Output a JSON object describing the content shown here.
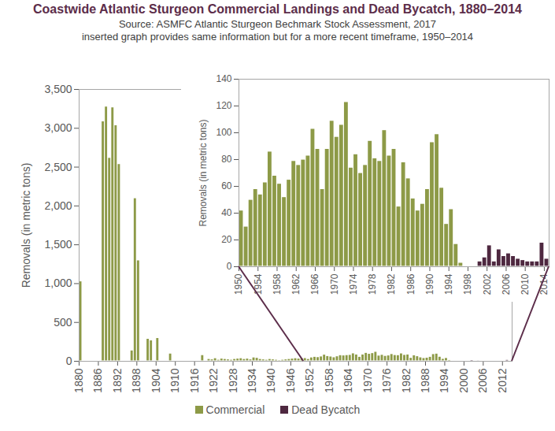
{
  "chart_data": [
    {
      "type": "bar",
      "title": "Coastwide Atlantic Sturgeon Commercial Landings and Dead Bycatch, 1880–2014",
      "subtitle": [
        "Source: ASMFC Atlantic Sturgeon Bechmark Stock Assessment, 2017",
        "inserted graph provides same information but for a more recent timeframe, 1950–2014"
      ],
      "ylabel": "Removals (in metric tons)",
      "x": [
        1880,
        1881,
        1882,
        1883,
        1884,
        1885,
        1886,
        1887,
        1888,
        1889,
        1890,
        1891,
        1892,
        1893,
        1894,
        1895,
        1896,
        1897,
        1898,
        1899,
        1900,
        1901,
        1902,
        1903,
        1904,
        1905,
        1906,
        1907,
        1908,
        1909,
        1910,
        1911,
        1912,
        1913,
        1914,
        1915,
        1916,
        1917,
        1918,
        1919,
        1920,
        1921,
        1922,
        1923,
        1924,
        1925,
        1926,
        1927,
        1928,
        1929,
        1930,
        1931,
        1932,
        1933,
        1934,
        1935,
        1936,
        1937,
        1938,
        1939,
        1940,
        1941,
        1942,
        1943,
        1944,
        1945,
        1946,
        1947,
        1948,
        1949,
        1950,
        1951,
        1952,
        1953,
        1954,
        1955,
        1956,
        1957,
        1958,
        1959,
        1960,
        1961,
        1962,
        1963,
        1964,
        1965,
        1966,
        1967,
        1968,
        1969,
        1970,
        1971,
        1972,
        1973,
        1974,
        1975,
        1976,
        1977,
        1978,
        1979,
        1980,
        1981,
        1982,
        1983,
        1984,
        1985,
        1986,
        1987,
        1988,
        1989,
        1990,
        1991,
        1992,
        1993,
        1994,
        1995,
        1996,
        1997,
        1998,
        1999,
        2000,
        2001,
        2002,
        2003,
        2004,
        2005,
        2006,
        2007,
        2008,
        2009,
        2010,
        2011,
        2012,
        2013,
        2014
      ],
      "series": [
        {
          "name": "Commercial",
          "color": "#8d9a47",
          "values": [
            1030,
            null,
            null,
            null,
            null,
            null,
            null,
            3090,
            3280,
            2620,
            3270,
            3040,
            2540,
            null,
            null,
            null,
            140,
            2100,
            1300,
            null,
            null,
            290,
            270,
            null,
            300,
            null,
            null,
            null,
            100,
            null,
            null,
            null,
            null,
            null,
            null,
            null,
            null,
            null,
            80,
            null,
            30,
            25,
            40,
            20,
            35,
            30,
            25,
            20,
            30,
            35,
            40,
            30,
            35,
            25,
            50,
            45,
            30,
            25,
            20,
            30,
            25,
            20,
            15,
            20,
            25,
            30,
            35,
            40,
            35,
            40,
            42,
            30,
            50,
            58,
            54,
            63,
            86,
            68,
            62,
            52,
            65,
            79,
            76,
            80,
            83,
            103,
            88,
            58,
            88,
            109,
            97,
            106,
            123,
            74,
            84,
            70,
            76,
            94,
            81,
            79,
            102,
            83,
            88,
            45,
            78,
            66,
            51,
            42,
            47,
            58,
            93,
            99,
            59,
            32,
            43,
            17,
            3,
            null,
            null,
            null,
            null,
            null,
            null,
            null,
            null,
            null,
            null,
            null,
            null,
            null,
            null,
            null,
            null,
            null,
            null
          ]
        },
        {
          "name": "Dead Bycatch",
          "color": "#4e2840",
          "values": [
            null,
            null,
            null,
            null,
            null,
            null,
            null,
            null,
            null,
            null,
            null,
            null,
            null,
            null,
            null,
            null,
            null,
            null,
            null,
            null,
            null,
            null,
            null,
            null,
            null,
            null,
            null,
            null,
            null,
            null,
            null,
            null,
            null,
            null,
            null,
            null,
            null,
            null,
            null,
            null,
            null,
            null,
            null,
            null,
            null,
            null,
            null,
            null,
            null,
            null,
            null,
            null,
            null,
            null,
            null,
            null,
            null,
            null,
            null,
            null,
            null,
            null,
            null,
            null,
            null,
            null,
            null,
            null,
            null,
            null,
            null,
            null,
            null,
            null,
            null,
            null,
            null,
            null,
            null,
            null,
            null,
            null,
            null,
            null,
            null,
            null,
            null,
            null,
            null,
            null,
            null,
            null,
            null,
            null,
            null,
            null,
            null,
            null,
            null,
            null,
            null,
            null,
            null,
            null,
            null,
            null,
            null,
            null,
            null,
            null,
            null,
            null,
            null,
            null,
            null,
            null,
            null,
            null,
            null,
            null,
            4,
            7,
            16,
            4,
            13,
            8,
            10,
            8,
            6,
            5,
            4,
            4,
            4,
            18,
            6
          ]
        }
      ],
      "xlim": [
        1880,
        2015
      ],
      "xticks": [
        1880,
        1886,
        1892,
        1898,
        1904,
        1910,
        1916,
        1922,
        1928,
        1934,
        1940,
        1946,
        1952,
        1958,
        1964,
        1970,
        1976,
        1982,
        1988,
        1994,
        2000,
        2006,
        2012
      ],
      "ylim": [
        0,
        3500
      ],
      "yticks": [
        0,
        500,
        {
          "value": 1000,
          "label": "1,000"
        },
        {
          "value": 1500,
          "label": "1,500"
        },
        {
          "value": 2000,
          "label": "2,000"
        },
        {
          "value": 2500,
          "label": "2,500"
        },
        {
          "value": 3000,
          "label": "3,000"
        },
        {
          "value": 3500,
          "label": "3,500"
        }
      ],
      "grid": false,
      "legend": "bottom"
    },
    {
      "type": "bar",
      "ylabel": "Removals (in metric tons)",
      "x": [
        1950,
        1951,
        1952,
        1953,
        1954,
        1955,
        1956,
        1957,
        1958,
        1959,
        1960,
        1961,
        1962,
        1963,
        1964,
        1965,
        1966,
        1967,
        1968,
        1969,
        1970,
        1971,
        1972,
        1973,
        1974,
        1975,
        1976,
        1977,
        1978,
        1979,
        1980,
        1981,
        1982,
        1983,
        1984,
        1985,
        1986,
        1987,
        1988,
        1989,
        1990,
        1991,
        1992,
        1993,
        1994,
        1995,
        1996,
        1997,
        1998,
        1999,
        2000,
        2001,
        2002,
        2003,
        2004,
        2005,
        2006,
        2007,
        2008,
        2009,
        2010,
        2011,
        2012,
        2013,
        2014
      ],
      "series": [
        {
          "name": "Commercial",
          "color": "#8d9a47",
          "values": [
            42,
            30,
            50,
            58,
            54,
            63,
            86,
            68,
            62,
            52,
            65,
            79,
            76,
            80,
            83,
            103,
            88,
            58,
            88,
            109,
            97,
            106,
            123,
            74,
            84,
            70,
            76,
            94,
            81,
            79,
            102,
            83,
            88,
            45,
            78,
            66,
            51,
            42,
            47,
            58,
            93,
            99,
            59,
            32,
            43,
            17,
            3,
            null,
            null,
            null,
            null,
            null,
            null,
            null,
            null,
            null,
            null,
            null,
            null,
            null,
            null,
            null,
            null,
            null,
            null
          ]
        },
        {
          "name": "Dead Bycatch",
          "color": "#4e2840",
          "values": [
            null,
            null,
            null,
            null,
            null,
            null,
            null,
            null,
            null,
            null,
            null,
            null,
            null,
            null,
            null,
            null,
            null,
            null,
            null,
            null,
            null,
            null,
            null,
            null,
            null,
            null,
            null,
            null,
            null,
            null,
            null,
            null,
            null,
            null,
            null,
            null,
            null,
            null,
            null,
            null,
            null,
            null,
            null,
            null,
            null,
            null,
            null,
            null,
            null,
            null,
            4,
            7,
            16,
            4,
            13,
            8,
            10,
            8,
            6,
            5,
            4,
            4,
            4,
            18,
            6
          ]
        }
      ],
      "xlim": [
        1950,
        2015
      ],
      "xticks": [
        1950,
        1954,
        1958,
        1962,
        1966,
        1970,
        1974,
        1978,
        1982,
        1986,
        1990,
        1994,
        1998,
        2002,
        2006,
        2010,
        2014
      ],
      "ylim": [
        0,
        140
      ],
      "yticks": [
        0,
        20,
        40,
        60,
        80,
        100,
        120,
        140
      ],
      "grid": false
    }
  ]
}
